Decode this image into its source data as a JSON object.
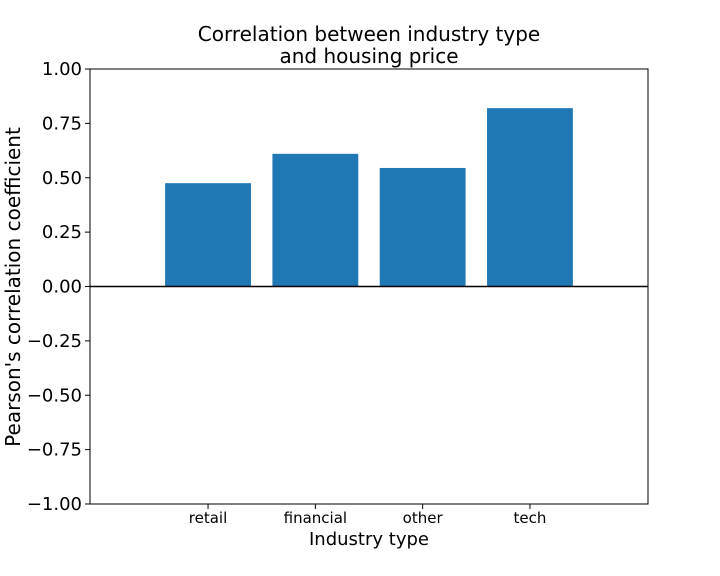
{
  "chart_data": {
    "type": "bar",
    "title": [
      "Correlation between industry type",
      "and housing price"
    ],
    "xlabel": "Industry type",
    "ylabel": "Pearson's correlation coefficient",
    "categories": [
      "retail",
      "financial",
      "other",
      "tech"
    ],
    "values": [
      0.475,
      0.61,
      0.545,
      0.82
    ],
    "ylim": [
      -1.0,
      1.0
    ],
    "yticks": [
      "1.00",
      "0.75",
      "0.50",
      "0.25",
      "0.00",
      "−0.25",
      "−0.50",
      "−0.75",
      "−1.00"
    ],
    "ytick_values": [
      1.0,
      0.75,
      0.5,
      0.25,
      0.0,
      -0.25,
      -0.5,
      -0.75,
      -1.0
    ],
    "grid": false,
    "bar_color": "#1f77b4",
    "zero_line": true
  }
}
